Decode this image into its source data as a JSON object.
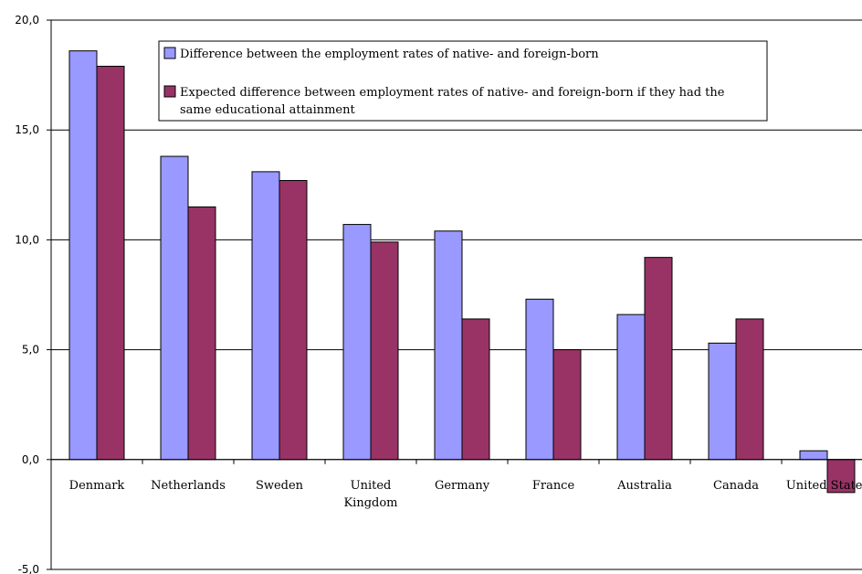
{
  "chart_data": {
    "type": "bar",
    "categories": [
      [
        "Denmark"
      ],
      [
        "Netherlands"
      ],
      [
        "Sweden"
      ],
      [
        "United",
        "Kingdom"
      ],
      [
        "Germany"
      ],
      [
        "France"
      ],
      [
        "Australia"
      ],
      [
        "Canada"
      ],
      [
        "United States"
      ]
    ],
    "series": [
      {
        "name": "Difference between the employment rates of native- and foreign-born",
        "color": "#9999ff",
        "values": [
          18.6,
          13.8,
          13.1,
          10.7,
          10.4,
          7.3,
          6.6,
          5.3,
          0.4
        ]
      },
      {
        "name": [
          "Expected difference between employment rates of native- and foreign-born if they had the",
          "same educational attainment"
        ],
        "color": "#993366",
        "values": [
          17.9,
          11.5,
          12.7,
          9.9,
          6.4,
          5.0,
          9.2,
          6.4,
          -1.5
        ]
      }
    ],
    "yticks": [
      "20,0",
      "15,0",
      "10,0",
      "5,0",
      "0,0",
      "-5,0"
    ],
    "ylim": [
      -5,
      20
    ],
    "grid": true,
    "legend": "top-center"
  }
}
